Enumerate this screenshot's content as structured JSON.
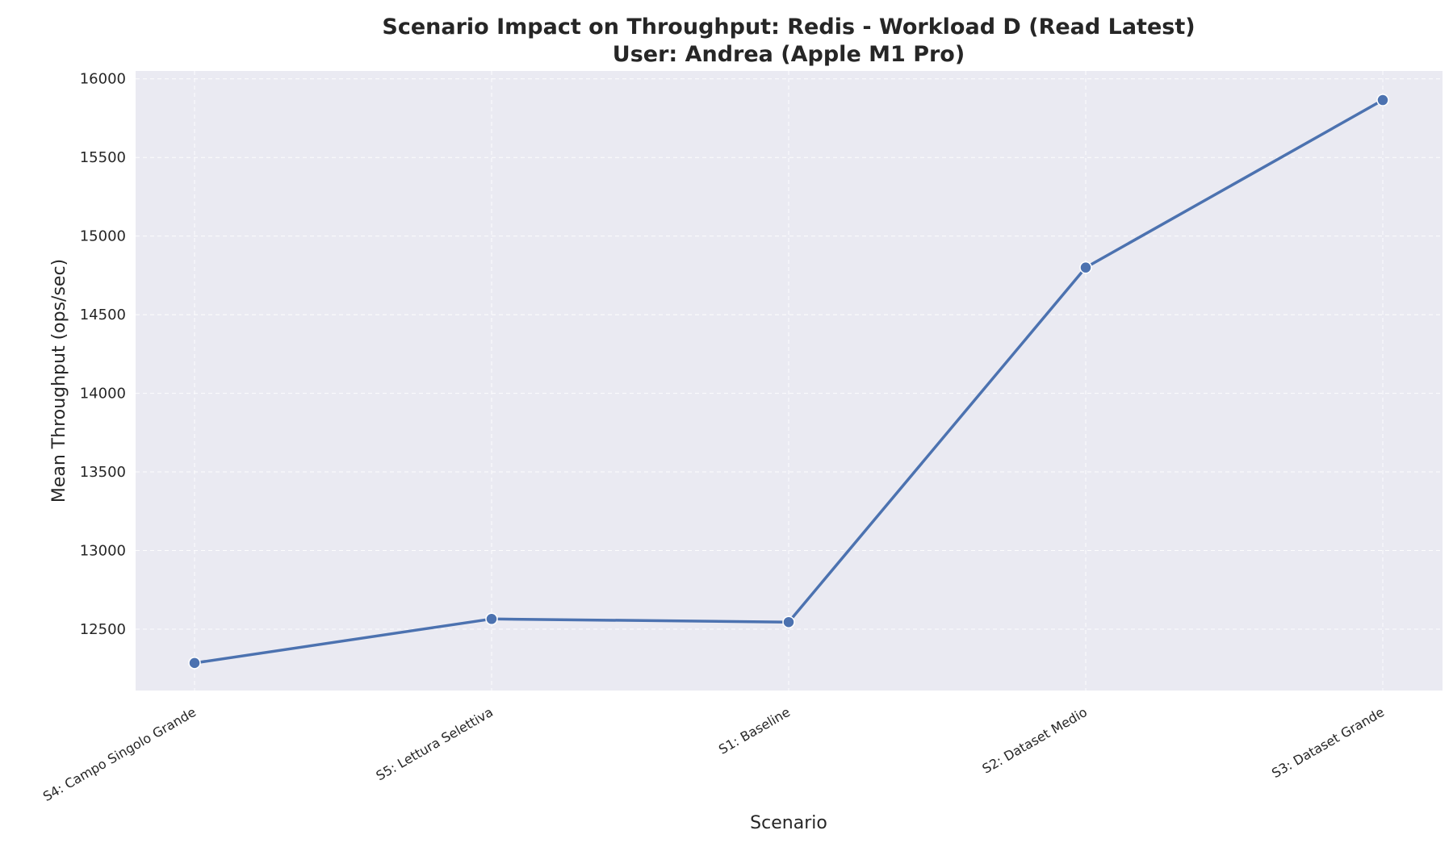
{
  "chart_data": {
    "type": "line",
    "title": "Scenario Impact on Throughput: Redis - Workload D (Read Latest)",
    "subtitle": "User: Andrea (Apple M1 Pro)",
    "xlabel": "Scenario",
    "ylabel": "Mean Throughput (ops/sec)",
    "categories": [
      "S4: Campo Singolo Grande",
      "S5: Lettura Selettiva",
      "S1: Baseline",
      "S2: Dataset Medio",
      "S3: Dataset Grande"
    ],
    "values": [
      12285,
      12565,
      12545,
      14800,
      15865
    ],
    "ylim": [
      12110,
      16050
    ],
    "yticks": [
      12500,
      13000,
      13500,
      14000,
      14500,
      15000,
      15500,
      16000
    ],
    "grid": true,
    "line_color": "#4c72b0",
    "plot_bg": "#eaeaf2"
  }
}
